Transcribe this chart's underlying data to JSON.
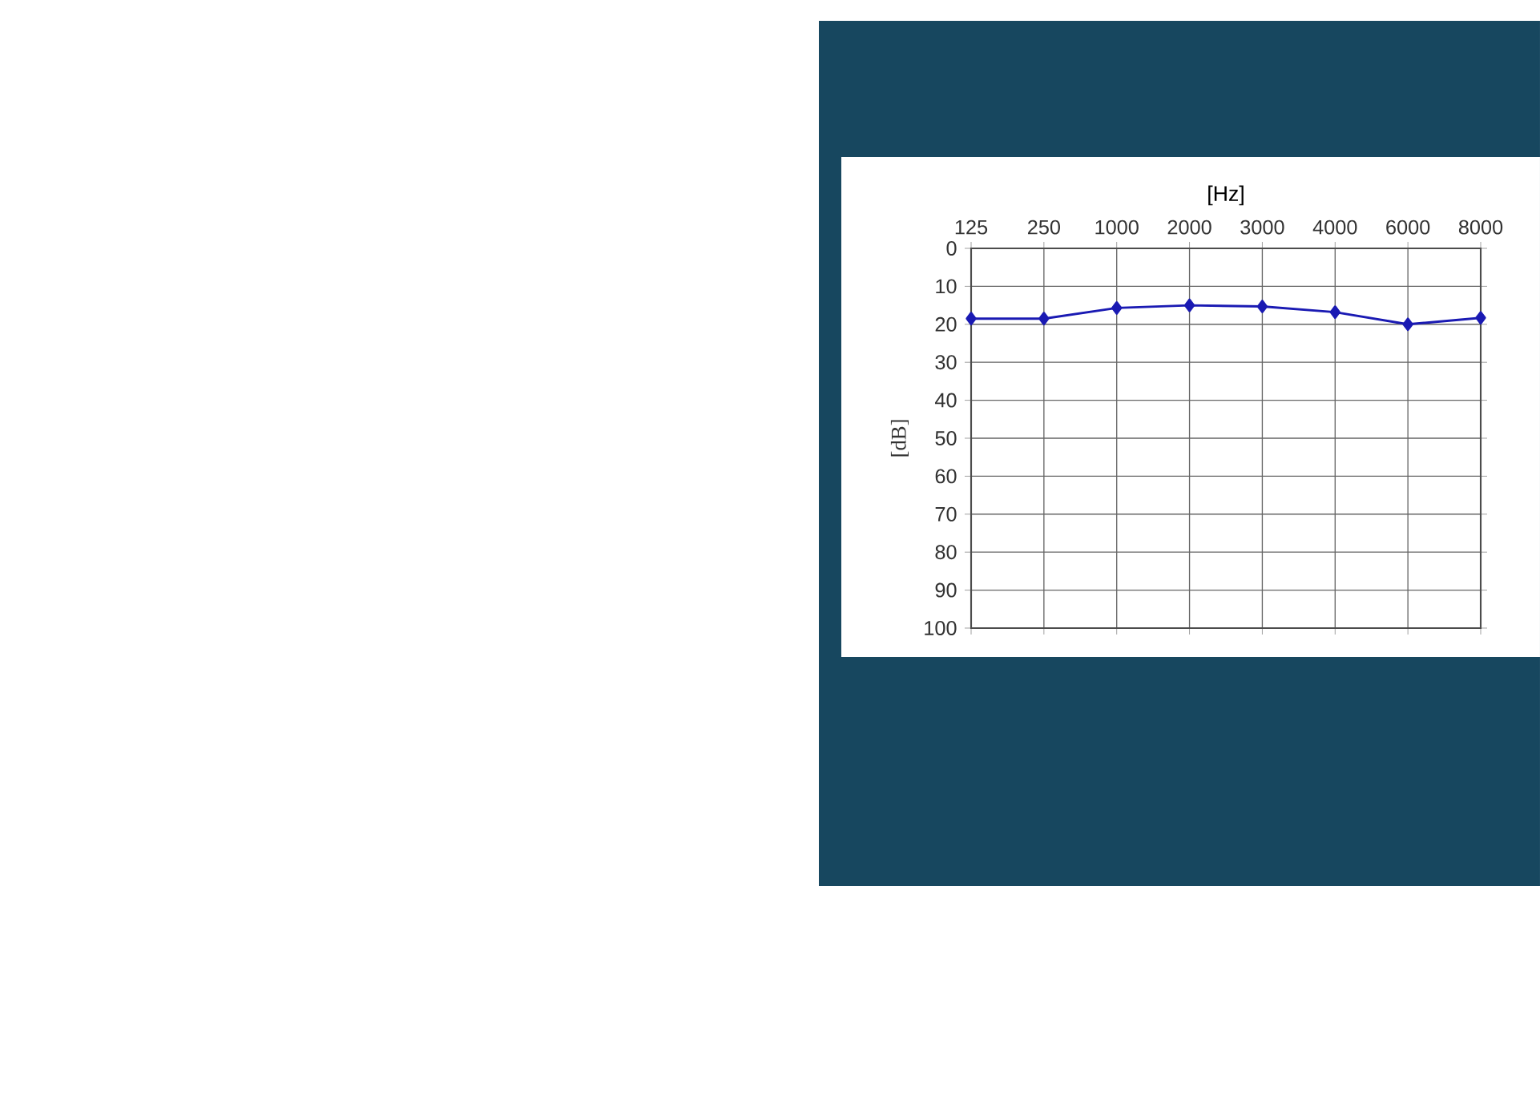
{
  "chart_data": {
    "type": "line",
    "xlabel": "[Hz]",
    "ylabel": "[dB]",
    "categories": [
      "125",
      "250",
      "1000",
      "2000",
      "3000",
      "4000",
      "6000",
      "8000"
    ],
    "series": [
      {
        "color": "#1a1ab3",
        "values": [
          18.5,
          18.5,
          15.7,
          15,
          15.3,
          16.8,
          20,
          18.3
        ]
      }
    ],
    "ylim": [
      100,
      0
    ],
    "yticks": [
      0,
      10,
      20,
      30,
      40,
      50,
      60,
      70,
      80,
      90,
      100
    ],
    "grid": true,
    "marker": "diamond",
    "line_style": "solid"
  }
}
